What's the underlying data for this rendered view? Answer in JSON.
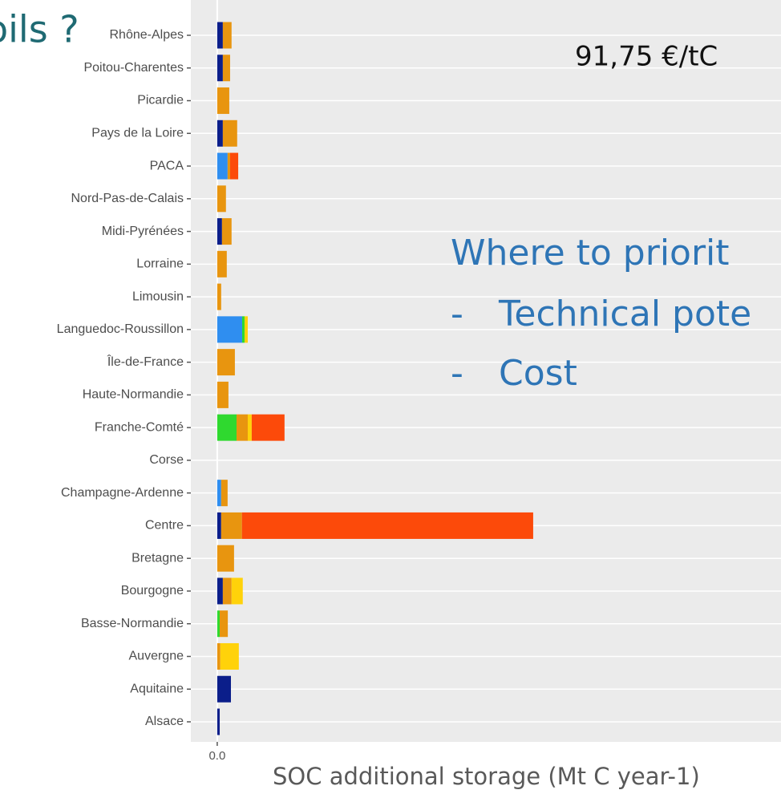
{
  "chart_data": {
    "type": "stacked_barh",
    "title": "91,75 €/tC",
    "xlabel": "SOC additional storage (Mt C year-1)",
    "annotations": [
      "oils ?",
      "Where to priorit",
      "-",
      "Technical pote",
      "-",
      "Cost"
    ],
    "categories": [
      "Rhône-Alpes",
      "Poitou-Charentes",
      "Picardie",
      "Pays de la Loire",
      "PACA",
      "Nord-Pas-de-Calais",
      "Midi-Pyrénées",
      "Lorraine",
      "Limousin",
      "Languedoc-Roussillon",
      "Île-de-France",
      "Haute-Normandie",
      "Franche-Comté",
      "Corse",
      "Champagne-Ardenne",
      "Centre",
      "Bretagne",
      "Bourgogne",
      "Basse-Normandie",
      "Auvergne",
      "Aquitaine",
      "Alsace"
    ],
    "series": [
      {
        "color": "#0b1e8a",
        "values": [
          0.0027,
          0.0027,
          0,
          0.0027,
          0,
          0,
          0.0023,
          0,
          0,
          0,
          0,
          0,
          0,
          0,
          0,
          0.0019,
          0,
          0.0027,
          0,
          0,
          0.0066,
          0.0012
        ]
      },
      {
        "color": "#2f8ef0",
        "values": [
          0,
          0,
          0,
          0,
          0.005,
          0,
          0,
          0,
          0,
          0.012,
          0,
          0,
          0,
          0,
          0.0019,
          0,
          0,
          0,
          0,
          0,
          0,
          0
        ]
      },
      {
        "color": "#2fd92f",
        "values": [
          0,
          0,
          0,
          0,
          0,
          0,
          0,
          0,
          0,
          0.0012,
          0,
          0,
          0.0093,
          0,
          0,
          0,
          0,
          0,
          0.0012,
          0,
          0,
          0
        ]
      },
      {
        "color": "#e8950f",
        "values": [
          0.0042,
          0.0035,
          0.0058,
          0.0069,
          0.0012,
          0.0042,
          0.0046,
          0.0046,
          0.0019,
          0,
          0.0085,
          0.0054,
          0.0054,
          0,
          0.0031,
          0.01,
          0.0081,
          0.0042,
          0.0039,
          0.0015,
          0,
          0
        ]
      },
      {
        "color": "#ffd20a",
        "values": [
          0,
          0,
          0,
          0,
          0,
          0,
          0,
          0,
          0,
          0.0015,
          0,
          0,
          0.0019,
          0,
          0,
          0,
          0,
          0.0054,
          0,
          0.0089,
          0,
          0
        ]
      },
      {
        "color": "#fc4a0a",
        "values": [
          0,
          0,
          0,
          0,
          0.0039,
          0,
          0,
          0,
          0,
          0,
          0,
          0,
          0.0158,
          0,
          0,
          0.1402,
          0,
          0,
          0,
          0,
          0,
          0
        ]
      }
    ],
    "xlim": [
      -0.0127,
      0.2714
    ],
    "xticks": [
      {
        "value": 0,
        "label": "0.0"
      }
    ],
    "grid": true
  }
}
